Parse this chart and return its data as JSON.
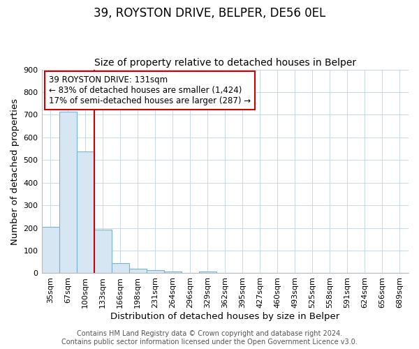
{
  "title": "39, ROYSTON DRIVE, BELPER, DE56 0EL",
  "subtitle": "Size of property relative to detached houses in Belper",
  "xlabel": "Distribution of detached houses by size in Belper",
  "ylabel": "Number of detached properties",
  "footer_line1": "Contains HM Land Registry data © Crown copyright and database right 2024.",
  "footer_line2": "Contains public sector information licensed under the Open Government Licence v3.0.",
  "categories": [
    "35sqm",
    "67sqm",
    "100sqm",
    "133sqm",
    "166sqm",
    "198sqm",
    "231sqm",
    "264sqm",
    "296sqm",
    "329sqm",
    "362sqm",
    "395sqm",
    "427sqm",
    "460sqm",
    "493sqm",
    "525sqm",
    "558sqm",
    "591sqm",
    "624sqm",
    "656sqm",
    "689sqm"
  ],
  "values": [
    204,
    714,
    537,
    193,
    46,
    21,
    14,
    9,
    0,
    8,
    0,
    0,
    0,
    0,
    0,
    0,
    0,
    0,
    0,
    0,
    0
  ],
  "bar_color": "#d6e6f2",
  "bar_edge_color": "#7ab3d0",
  "annotation_line_color": "#cc0000",
  "annotation_box_edge_color": "#cc0000",
  "annotation_line1": "39 ROYSTON DRIVE: 131sqm",
  "annotation_line2": "← 83% of detached houses are smaller (1,424)",
  "annotation_line3": "17% of semi-detached houses are larger (287) →",
  "prop_bar_index": 2.97,
  "ylim": [
    0,
    900
  ],
  "yticks": [
    0,
    100,
    200,
    300,
    400,
    500,
    600,
    700,
    800,
    900
  ],
  "title_fontsize": 12,
  "subtitle_fontsize": 10,
  "axis_label_fontsize": 9.5,
  "tick_fontsize": 8,
  "annotation_fontsize": 8.5,
  "footer_fontsize": 7,
  "background_color": "#ffffff",
  "grid_color": "#c8daea"
}
